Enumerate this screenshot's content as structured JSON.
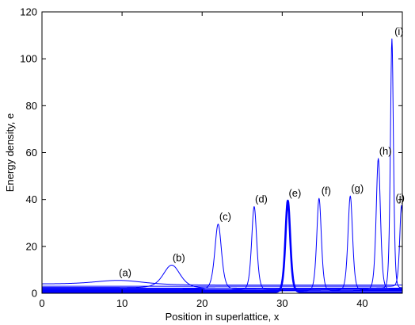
{
  "chart_data": {
    "type": "line",
    "title": "",
    "xlabel": "Position in superlattice, x",
    "ylabel": "Energy density, e",
    "xlim": [
      0,
      45
    ],
    "ylim": [
      0,
      120
    ],
    "xticks": [
      0,
      10,
      20,
      30,
      40
    ],
    "yticks": [
      0,
      20,
      40,
      60,
      80,
      100,
      120
    ],
    "grid": false,
    "line_color": "#0000ff",
    "series": [
      {
        "label": "(a)",
        "center": 9.5,
        "peak": 5.5,
        "width": 4.0,
        "baseline_left": 4.0,
        "baseline_right": 3.5,
        "bold": false
      },
      {
        "label": "(b)",
        "center": 16.2,
        "peak": 12.0,
        "width": 1.4,
        "baseline_left": 2.5,
        "baseline_right": 2.2,
        "bold": false
      },
      {
        "label": "(c)",
        "center": 22.0,
        "peak": 29.5,
        "width": 0.55,
        "baseline_left": 1.8,
        "baseline_right": 2.0,
        "bold": false
      },
      {
        "label": "(d)",
        "center": 26.5,
        "peak": 37.0,
        "width": 0.42,
        "baseline_left": 1.4,
        "baseline_right": 1.6,
        "bold": false
      },
      {
        "label": "(e)",
        "center": 30.7,
        "peak": 39.5,
        "width": 0.4,
        "baseline_left": 0.5,
        "baseline_right": 0.5,
        "bold": true
      },
      {
        "label": "(f)",
        "center": 34.6,
        "peak": 40.5,
        "width": 0.38,
        "baseline_left": 1.0,
        "baseline_right": 1.2,
        "bold": false
      },
      {
        "label": "(g)",
        "center": 38.5,
        "peak": 41.5,
        "width": 0.38,
        "baseline_left": 1.2,
        "baseline_right": 1.4,
        "bold": false
      },
      {
        "label": "(h)",
        "center": 42.0,
        "peak": 57.5,
        "width": 0.35,
        "baseline_left": 1.6,
        "baseline_right": 2.0,
        "bold": false
      },
      {
        "label": "(i)",
        "center": 43.7,
        "peak": 108.5,
        "width": 0.25,
        "baseline_left": 2.2,
        "baseline_right": 2.5,
        "bold": false
      },
      {
        "label": "(j)",
        "center": 44.9,
        "peak": 37.5,
        "width": 0.3,
        "baseline_left": 3.0,
        "baseline_right": 3.0,
        "bold": false
      }
    ]
  }
}
